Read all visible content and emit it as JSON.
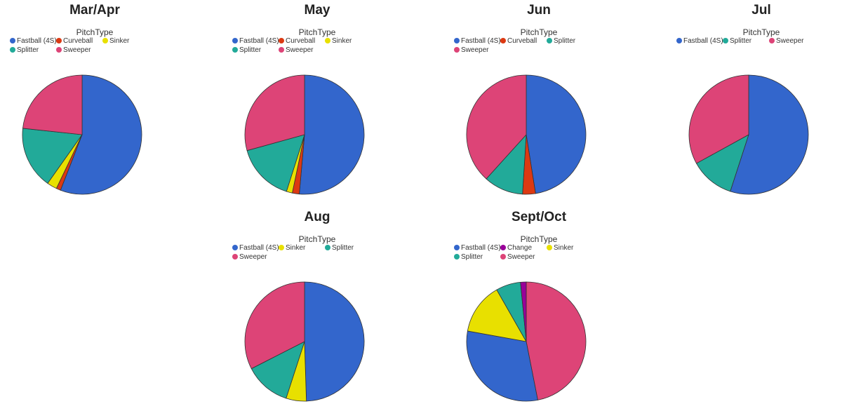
{
  "colors": {
    "Fastball (4S)": "#3366CC",
    "Curveball": "#DC3912",
    "Sinker": "#E8E000",
    "Splitter": "#22AA99",
    "Sweeper": "#DD4477",
    "Change": "#990099"
  },
  "legend_title": "PitchType",
  "chart_data": [
    {
      "type": "pie",
      "title": "Mar/Apr",
      "legend_title": "PitchType",
      "labels": [
        "Fastball (4S)",
        "Curveball",
        "Sinker",
        "Splitter",
        "Sweeper"
      ],
      "values": [
        55.9,
        1.2,
        2.7,
        16.9,
        23.3
      ]
    },
    {
      "type": "pie",
      "title": "May",
      "legend_title": "PitchType",
      "labels": [
        "Fastball (4S)",
        "Curveball",
        "Sinker",
        "Splitter",
        "Sweeper"
      ],
      "values": [
        51.4,
        1.9,
        1.6,
        15.8,
        29.3
      ]
    },
    {
      "type": "pie",
      "title": "Jun",
      "legend_title": "PitchType",
      "labels": [
        "Fastball (4S)",
        "Curveball",
        "Splitter",
        "Sweeper"
      ],
      "values": [
        47.5,
        3.5,
        10.7,
        38.3
      ]
    },
    {
      "type": "pie",
      "title": "Jul",
      "legend_title": "PitchType",
      "labels": [
        "Fastball (4S)",
        "Splitter",
        "Sweeper"
      ],
      "values": [
        55.0,
        12.0,
        33.0
      ]
    },
    {
      "type": "pie",
      "title": "Aug",
      "legend_title": "PitchType",
      "labels": [
        "Fastball (4S)",
        "Sinker",
        "Splitter",
        "Sweeper"
      ],
      "values": [
        49.5,
        5.5,
        12.5,
        32.5
      ]
    },
    {
      "type": "pie",
      "title": "Sept/Oct",
      "legend_title": "PitchType",
      "labels": [
        "Sweeper",
        "Fastball (4S)",
        "Sinker",
        "Splitter",
        "Change"
      ],
      "values": [
        45.5,
        30.0,
        13.5,
        6.5,
        1.5
      ],
      "legend_order": [
        "Fastball (4S)",
        "Change",
        "Sinker",
        "Splitter",
        "Sweeper"
      ]
    }
  ]
}
